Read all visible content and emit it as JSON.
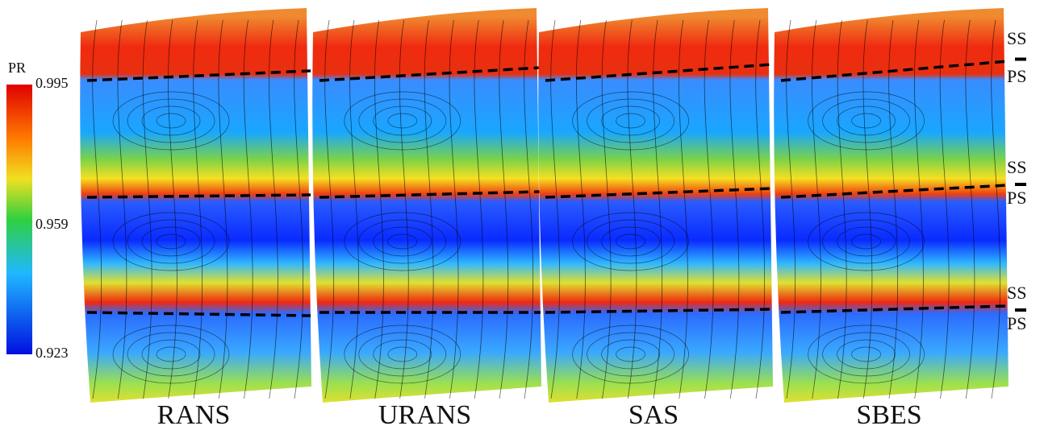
{
  "colorbar": {
    "title": "PR",
    "ticks": [
      "0.995",
      "0.959",
      "0.923"
    ]
  },
  "panels": [
    "RANS",
    "URANS",
    "SAS",
    "SBES"
  ],
  "side_labels": [
    {
      "upper": "SS",
      "lower": "PS"
    },
    {
      "upper": "SS",
      "lower": "PS"
    },
    {
      "upper": "SS",
      "lower": "PS"
    }
  ]
}
